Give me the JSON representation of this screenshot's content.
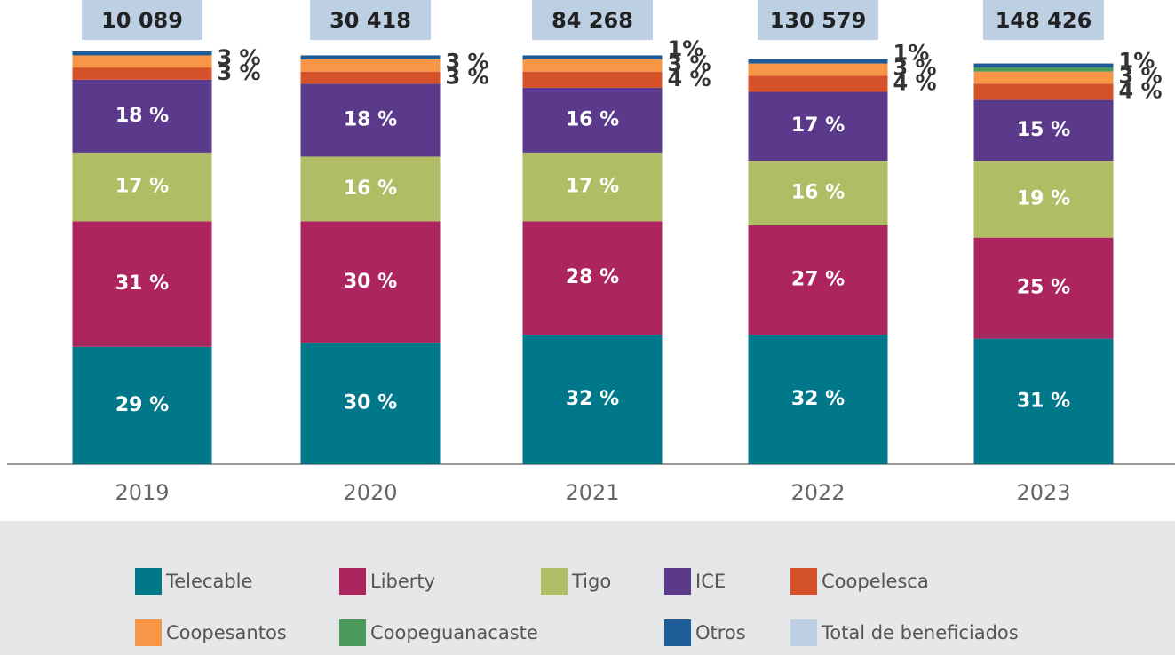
{
  "chart_data": {
    "type": "stacked_bar",
    "categories": [
      "2019",
      "2020",
      "2021",
      "2022",
      "2023"
    ],
    "ylim": [
      0,
      100
    ],
    "series": [
      {
        "name": "Telecable",
        "color": "#00788a",
        "values": [
          29,
          30,
          32,
          32,
          31
        ],
        "value_labels": [
          "29 %",
          "30 %",
          "32 %",
          "32 %",
          "31 %"
        ]
      },
      {
        "name": "Liberty",
        "color": "#ad255f",
        "values": [
          31,
          30,
          28,
          27,
          25
        ],
        "value_labels": [
          "31 %",
          "30 %",
          "28 %",
          "27 %",
          "25 %"
        ]
      },
      {
        "name": "Tigo",
        "color": "#b1bd64",
        "values": [
          17,
          16,
          17,
          16,
          19
        ],
        "value_labels": [
          "17 %",
          "16 %",
          "17 %",
          "16 %",
          "19 %"
        ]
      },
      {
        "name": "ICE",
        "color": "#5b3a8c",
        "values": [
          18,
          18,
          16,
          17,
          15
        ],
        "value_labels": [
          "18 %",
          "18 %",
          "16 %",
          "17 %",
          "15 %"
        ]
      },
      {
        "name": "Coopelesca",
        "color": "#d5512a",
        "values": [
          3,
          3,
          4,
          4,
          4
        ],
        "value_labels": [
          "3 %",
          "3 %",
          "4 %",
          "4 %",
          "4 %"
        ]
      },
      {
        "name": "Coopesantos",
        "color": "#f79646",
        "values": [
          3,
          3,
          3,
          3,
          3
        ],
        "value_labels": [
          "3 %",
          "3 %",
          "3 %",
          "3 %",
          "3 %"
        ]
      },
      {
        "name": "Coopeguanacaste",
        "color": "#4c9a5a",
        "values": [
          0,
          0,
          0,
          0,
          1
        ],
        "value_labels": [
          null,
          null,
          null,
          null,
          null
        ]
      },
      {
        "name": "Otros",
        "color": "#1d5c96",
        "values": [
          1,
          1,
          1,
          1,
          1
        ],
        "value_labels": [
          null,
          null,
          "1%",
          "1%",
          "1%"
        ]
      }
    ],
    "totals": {
      "name": "Total de beneficiados",
      "color": "#bccfe3",
      "values": [
        10089,
        30418,
        84268,
        130579,
        148426
      ],
      "value_labels": [
        "10 089",
        "30 418",
        "84 268",
        "130 579",
        "148 426"
      ]
    }
  }
}
